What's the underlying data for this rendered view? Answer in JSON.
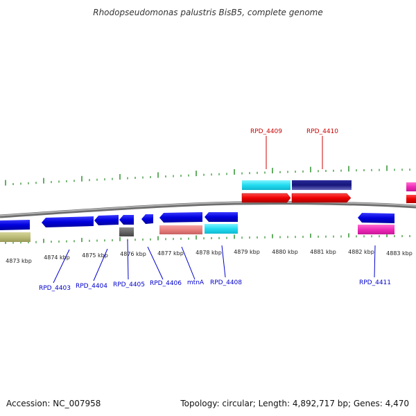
{
  "title": "Rhodopseudomonas palustris BisB5, complete genome",
  "footer": {
    "accession": "Accession: NC_007958",
    "topology": "Topology: circular; Length: 4,892,717 bp; Genes: 4,470"
  },
  "colors": {
    "backbone": "#888888",
    "ticks": "#1f8a1f",
    "label_top": "#cc0000",
    "label_bottom": "#0000cc"
  },
  "scale_labels": [
    "4873 kbp",
    "4874 kbp",
    "4875 kbp",
    "4876 kbp",
    "4877 kbp",
    "4878 kbp",
    "4879 kbp",
    "4880 kbp",
    "4881 kbp",
    "4882 kbp",
    "4883 kbp"
  ],
  "gene_labels_top": [
    "RPD_4409",
    "RPD_4410"
  ],
  "gene_labels_bottom": [
    "RPD_4403",
    "RPD_4404",
    "RPD_4405",
    "RPD_4406",
    "mtnA",
    "RPD_4408",
    "RPD_4411"
  ]
}
